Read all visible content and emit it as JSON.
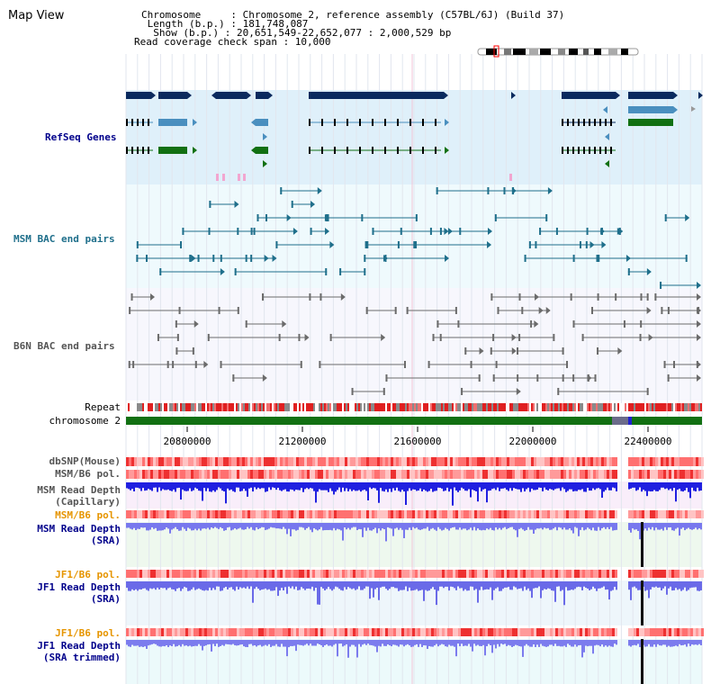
{
  "header": {
    "title": "Map View",
    "info_lines": [
      "Chromosome     : Chromosome 2, reference assembly (C57BL/6J) (Build 37)",
      " Length (b.p.) : 181,748,087",
      "  Show (b.p.) : 20,651,549-22,652,077 : 2,000,529 bp",
      "Read coverage check span : 10,000"
    ]
  },
  "tracks": {
    "refseq": "RefSeq Genes",
    "msm_bac": "MSM BAC end pairs",
    "b6n_bac": "B6N BAC end pairs",
    "repeat": "Repeat",
    "chromosome": "chromosome 2",
    "dbsnp": "dbSNP(Mouse)",
    "msm_pol1": "MSM/B6 pol.",
    "msm_depth_cap_1": "MSM Read Depth",
    "msm_depth_cap_2": "(Capillary)",
    "msm_pol2": "MSM/B6 pol.",
    "msm_depth_sra_1": "MSM Read Depth",
    "msm_depth_sra_2": "(SRA)",
    "jf1_pol1": "JF1/B6 pol.",
    "jf1_depth_sra_1": "JF1 Read Depth",
    "jf1_depth_sra_2": "(SRA)",
    "jf1_pol2": "JF1/B6 pol.",
    "jf1_depth_trim_1": "JF1 Read Depth",
    "jf1_depth_trim_2": "(SRA trimmed)"
  },
  "ruler": {
    "ticks": [
      "20800000",
      "21200000",
      "21600000",
      "22000000",
      "22400000"
    ]
  },
  "colors": {
    "navy": "#0a2a5e",
    "steel": "#4a8fbf",
    "green": "#127012",
    "teal": "#1f6f8b",
    "gray": "#6b6b6b",
    "refseq_label": "#00008b",
    "msm_label": "#1f6f8b",
    "b6n_label": "#555555",
    "orange_label": "#e69500",
    "blue_label": "#00008b"
  }
}
